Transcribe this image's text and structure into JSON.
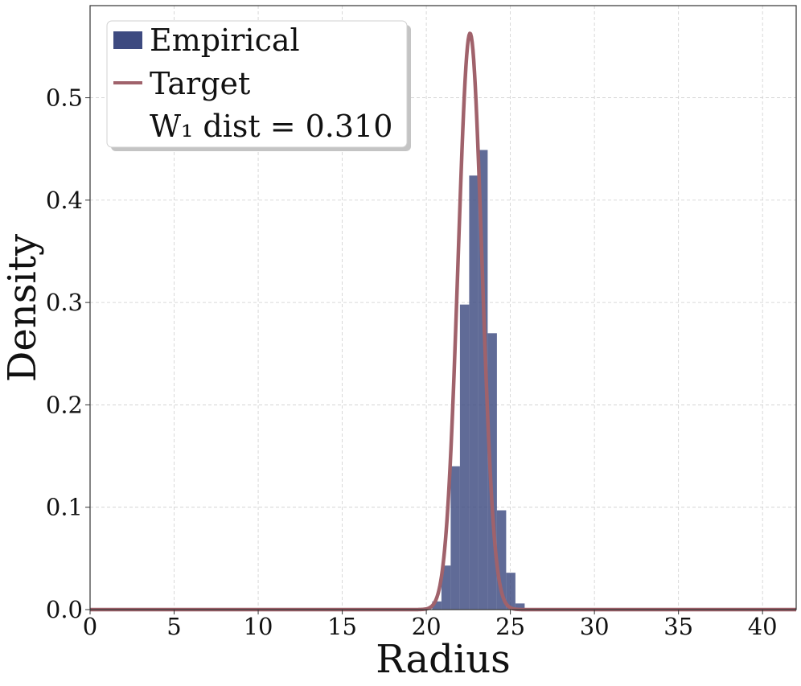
{
  "chart_data": {
    "type": "bar",
    "xlabel": "Radius",
    "ylabel": "Density",
    "xlim": [
      0,
      42
    ],
    "ylim": [
      0,
      0.59
    ],
    "x_ticks": [
      0,
      5,
      10,
      15,
      20,
      25,
      30,
      35,
      40
    ],
    "y_ticks": [
      0.0,
      0.1,
      0.2,
      0.3,
      0.4,
      0.5
    ],
    "y_tick_labels": [
      "0.0",
      "0.1",
      "0.2",
      "0.3",
      "0.4",
      "0.5"
    ],
    "grid": true,
    "legend_position": "top-left",
    "legend": {
      "empirical_label": "Empirical",
      "target_label": "Target",
      "annotation": "W₁ dist = 0.310"
    },
    "histogram": {
      "name": "Empirical",
      "color": "#3d4a80",
      "bins": [
        {
          "x0": 20.35,
          "x1": 20.9,
          "density": 0.008
        },
        {
          "x0": 20.9,
          "x1": 21.45,
          "density": 0.043
        },
        {
          "x0": 21.45,
          "x1": 22.0,
          "density": 0.14
        },
        {
          "x0": 22.0,
          "x1": 22.55,
          "density": 0.298
        },
        {
          "x0": 22.55,
          "x1": 23.1,
          "density": 0.424
        },
        {
          "x0": 23.1,
          "x1": 23.65,
          "density": 0.449
        },
        {
          "x0": 23.65,
          "x1": 24.2,
          "density": 0.27
        },
        {
          "x0": 24.2,
          "x1": 24.75,
          "density": 0.097
        },
        {
          "x0": 24.75,
          "x1": 25.3,
          "density": 0.036
        },
        {
          "x0": 25.3,
          "x1": 25.85,
          "density": 0.006
        }
      ]
    },
    "target_curve": {
      "name": "Target",
      "color": "#a0626b",
      "distribution": "gaussian",
      "mean": 22.6,
      "std": 0.71,
      "peak_density": 0.563
    }
  }
}
